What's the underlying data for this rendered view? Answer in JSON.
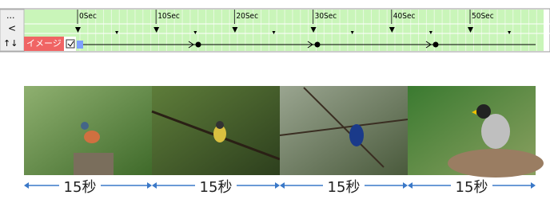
{
  "toolbar": {
    "menu": "...",
    "back": "<",
    "swap": "↑↓"
  },
  "timeline": {
    "ruler": [
      "0Sec",
      "10Sec",
      "20Sec",
      "30Sec",
      "40Sec",
      "50Sec"
    ],
    "track_label": "イメージ"
  },
  "captions": [
    "15秒",
    "15秒",
    "15秒",
    "15秒"
  ]
}
